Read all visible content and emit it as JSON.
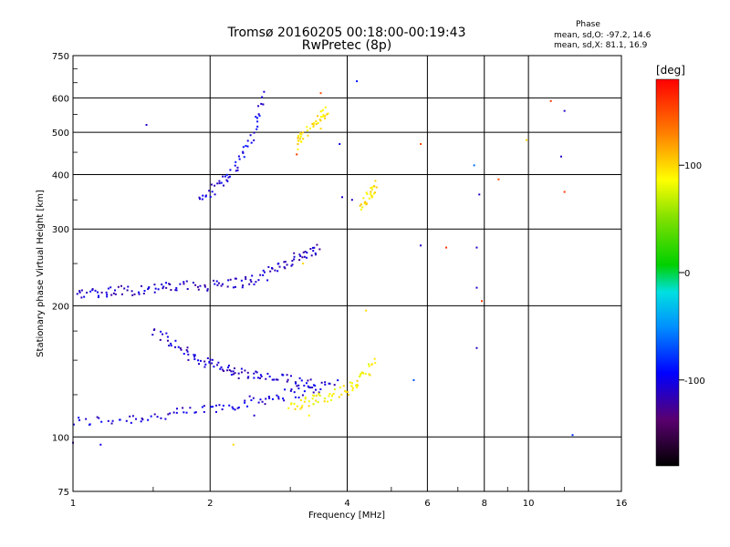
{
  "chart_data": {
    "type": "scatter",
    "title": "Tromsø 20160205 00:18:00-00:19:43",
    "subtitle": "RwPretec (8p)",
    "xlabel": "Frequency [MHz]",
    "ylabel": "Stationary phase Virtual Height [km]",
    "x_scale": "log2",
    "y_scale": "log",
    "xlim": [
      1,
      16
    ],
    "ylim": [
      75,
      750
    ],
    "x_ticks": [
      "1",
      "2",
      "4",
      "6",
      "8",
      "10",
      "16"
    ],
    "y_ticks": [
      "75",
      "100",
      "200",
      "300",
      "400",
      "500",
      "600",
      "750"
    ],
    "grid": true,
    "phase_box": {
      "title": "Phase",
      "o_line": "mean, sd,O: -97.2, 14.6",
      "x_line": "mean, sd,X: 81.1, 16.9"
    },
    "colorbar": {
      "label": "[deg]",
      "ticks": [
        "100",
        "0",
        "-100"
      ],
      "tick_values": [
        100,
        0,
        -100
      ],
      "range": [
        -180,
        180
      ]
    },
    "traces": [
      {
        "x": [
          1.0,
          1.3,
          1.6,
          2.0,
          2.4,
          2.8,
          3.3,
          3.8
        ],
        "y": [
          108,
          110,
          112,
          116,
          120,
          124,
          128,
          133
        ],
        "phase": -105
      },
      {
        "x": [
          1.0,
          1.15,
          1.3,
          1.5,
          1.7,
          2.0,
          2.3,
          2.6
        ],
        "y": [
          214,
          215,
          217,
          219,
          221,
          223,
          226,
          230
        ],
        "phase": -110
      },
      {
        "x": [
          2.6,
          2.9,
          3.2,
          3.5
        ],
        "y": [
          233,
          250,
          262,
          272
        ],
        "phase": -115
      },
      {
        "x": [
          1.9,
          2.1,
          2.3,
          2.5,
          2.65
        ],
        "y": [
          350,
          380,
          420,
          500,
          620
        ],
        "phase": -100
      },
      {
        "x": [
          1.5,
          1.7,
          1.9,
          2.1,
          2.3,
          2.6,
          3.0,
          3.4
        ],
        "y": [
          175,
          160,
          150,
          145,
          140,
          137,
          135,
          133
        ],
        "phase": -108
      },
      {
        "x": [
          3.0,
          3.3,
          3.6,
          4.0,
          4.3,
          4.6
        ],
        "y": [
          118,
          121,
          124,
          128,
          135,
          150
        ],
        "phase": 90
      },
      {
        "x": [
          3.1,
          3.2,
          3.5,
          3.6
        ],
        "y": [
          470,
          490,
          540,
          560
        ],
        "phase": 95
      },
      {
        "x": [
          4.3,
          4.5,
          4.6
        ],
        "y": [
          340,
          360,
          380
        ],
        "phase": 95
      }
    ],
    "points": [
      {
        "x": 1.45,
        "y": 520,
        "phase": -110
      },
      {
        "x": 4.2,
        "y": 655,
        "phase": -90
      },
      {
        "x": 5.8,
        "y": 470,
        "phase": 150
      },
      {
        "x": 7.6,
        "y": 420,
        "phase": -60
      },
      {
        "x": 7.8,
        "y": 360,
        "phase": -110
      },
      {
        "x": 8.6,
        "y": 390,
        "phase": 150
      },
      {
        "x": 9.9,
        "y": 480,
        "phase": 100
      },
      {
        "x": 11.2,
        "y": 590,
        "phase": 160
      },
      {
        "x": 12.0,
        "y": 560,
        "phase": -110
      },
      {
        "x": 11.8,
        "y": 440,
        "phase": -110
      },
      {
        "x": 12.0,
        "y": 365,
        "phase": 160
      },
      {
        "x": 12.5,
        "y": 101,
        "phase": -80
      },
      {
        "x": 5.8,
        "y": 275,
        "phase": -110
      },
      {
        "x": 6.6,
        "y": 272,
        "phase": 160
      },
      {
        "x": 7.7,
        "y": 272,
        "phase": -110
      },
      {
        "x": 7.7,
        "y": 220,
        "phase": -110
      },
      {
        "x": 7.9,
        "y": 205,
        "phase": 160
      },
      {
        "x": 7.7,
        "y": 160,
        "phase": -110
      },
      {
        "x": 5.6,
        "y": 135,
        "phase": -70
      },
      {
        "x": 3.85,
        "y": 470,
        "phase": -100
      },
      {
        "x": 3.9,
        "y": 355,
        "phase": -110
      },
      {
        "x": 3.1,
        "y": 445,
        "phase": 160
      },
      {
        "x": 3.5,
        "y": 615,
        "phase": 150
      },
      {
        "x": 1.0,
        "y": 97,
        "phase": -120
      },
      {
        "x": 1.15,
        "y": 96,
        "phase": -100
      },
      {
        "x": 2.25,
        "y": 96,
        "phase": 100
      },
      {
        "x": 2.5,
        "y": 112,
        "phase": -110
      },
      {
        "x": 3.3,
        "y": 112,
        "phase": 90
      },
      {
        "x": 3.2,
        "y": 250,
        "phase": 100
      },
      {
        "x": 4.4,
        "y": 195,
        "phase": 100
      },
      {
        "x": 3.5,
        "y": 510,
        "phase": 100
      },
      {
        "x": 4.1,
        "y": 350,
        "phase": -110
      }
    ]
  }
}
